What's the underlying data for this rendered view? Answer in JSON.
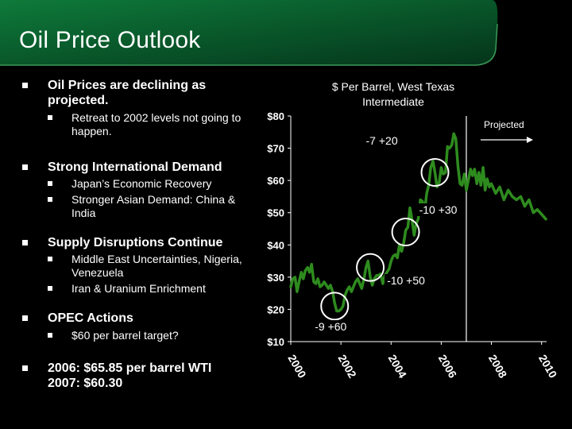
{
  "slide": {
    "title": "Oil Price Outlook"
  },
  "bullets": [
    {
      "text": "Oil Prices are declining as projected.",
      "sub": [
        "Retreat to 2002 levels not going to happen."
      ]
    },
    {
      "text": "Strong International Demand",
      "sub": [
        "Japan’s Economic Recovery",
        "Stronger Asian Demand: China & India"
      ]
    },
    {
      "text": "Supply Disruptions Continue",
      "sub": [
        "Middle East Uncertainties, Nigeria, Venezuela",
        "Iran & Uranium Enrichment"
      ]
    },
    {
      "text": "OPEC Actions",
      "sub": [
        "$60 per barrel target?"
      ]
    },
    {
      "text": "2006: $65.85 per barrel WTI 2007: $60.30",
      "sub": []
    }
  ],
  "colors": {
    "background": "#000000",
    "accent_green": "#0b5a2a",
    "series": "#2e8b1e",
    "circle": "#ffffff"
  },
  "chart_data": {
    "type": "line",
    "title": "$ Per Barrel, West Texas Intermediate",
    "ylim": [
      10,
      80
    ],
    "xlim": [
      2000,
      2010.2
    ],
    "yticks": [
      "$80",
      "$70",
      "$60",
      "$50",
      "$40",
      "$30",
      "$20",
      "$10"
    ],
    "ytick_values": [
      80,
      70,
      60,
      50,
      40,
      30,
      20,
      10
    ],
    "xticks": [
      "2000",
      "2002",
      "2004",
      "2006",
      "2008",
      "2010"
    ],
    "xtick_values": [
      2000,
      2002,
      2004,
      2006,
      2008,
      2010
    ],
    "projected_label": "Projected",
    "projected_start": 2007.0,
    "series": [
      {
        "x": [
          2000.0,
          2000.08,
          2000.17,
          2000.25,
          2000.33,
          2000.42,
          2000.5,
          2000.58,
          2000.67,
          2000.75,
          2000.83,
          2000.92,
          2001.0,
          2001.08,
          2001.17,
          2001.25,
          2001.33,
          2001.42,
          2001.5,
          2001.58,
          2001.67,
          2001.75,
          2001.83,
          2001.92,
          2002.0,
          2002.08,
          2002.17,
          2002.25,
          2002.33,
          2002.42,
          2002.5,
          2002.58,
          2002.67,
          2002.75,
          2002.83,
          2002.92,
          2003.0,
          2003.08,
          2003.17,
          2003.25,
          2003.33,
          2003.42,
          2003.5,
          2003.58,
          2003.67,
          2003.75,
          2003.83,
          2003.92,
          2004.0,
          2004.08,
          2004.17,
          2004.25,
          2004.33,
          2004.42,
          2004.5,
          2004.58,
          2004.67,
          2004.75,
          2004.83,
          2004.92,
          2005.0,
          2005.08,
          2005.17,
          2005.25,
          2005.33,
          2005.42,
          2005.5,
          2005.58,
          2005.67,
          2005.75,
          2005.83,
          2005.92,
          2006.0,
          2006.08,
          2006.17,
          2006.25,
          2006.33,
          2006.42,
          2006.5,
          2006.58,
          2006.67,
          2006.75,
          2006.83,
          2006.92,
          2007.0,
          2007.08,
          2007.17,
          2007.25,
          2007.33,
          2007.42,
          2007.5,
          2007.58,
          2007.67,
          2007.75,
          2007.83,
          2007.92,
          2008.0,
          2008.17,
          2008.33,
          2008.5,
          2008.67,
          2008.83,
          2009.0,
          2009.17,
          2009.33,
          2009.5,
          2009.67,
          2009.83,
          2010.0,
          2010.17
        ],
        "values": [
          27,
          29.5,
          30,
          25.5,
          28.5,
          31.5,
          29.5,
          32,
          33,
          31.5,
          34,
          28.5,
          28,
          29.5,
          27,
          27.5,
          28.5,
          27.5,
          26.5,
          27.5,
          25.5,
          22,
          19.5,
          19.5,
          20,
          21,
          24.5,
          26,
          27,
          25.5,
          27,
          28.5,
          29.5,
          28,
          26.5,
          29.5,
          33,
          35,
          30,
          27.5,
          29.5,
          30.5,
          30.5,
          31,
          28,
          30.5,
          31.5,
          32.5,
          35,
          36.5,
          37,
          36,
          40,
          38,
          40.5,
          44.5,
          45.5,
          51.5,
          48,
          43,
          46.5,
          48,
          54,
          53.5,
          50,
          56,
          58.5,
          64,
          66,
          62.5,
          58,
          59.5,
          64,
          62,
          62.5,
          70.5,
          70,
          71,
          74.5,
          73,
          64,
          59,
          58.5,
          62,
          57,
          60,
          63.5,
          61.5,
          63.5,
          59,
          62.5,
          58.5,
          64,
          57,
          60.5,
          58,
          59,
          56,
          58,
          54,
          57,
          55,
          54,
          55,
          52,
          54,
          50,
          51,
          49.5,
          48
        ]
      }
    ],
    "annotations": [
      {
        "label": "-9  +60",
        "x": 2001.75,
        "y": 21
      },
      {
        "label": "-10  +50",
        "x": 2003.17,
        "y": 33
      },
      {
        "label": "-10  +30",
        "x": 2004.58,
        "y": 44
      },
      {
        "label": "-7  +20",
        "x": 2005.75,
        "y": 62.5
      }
    ]
  }
}
